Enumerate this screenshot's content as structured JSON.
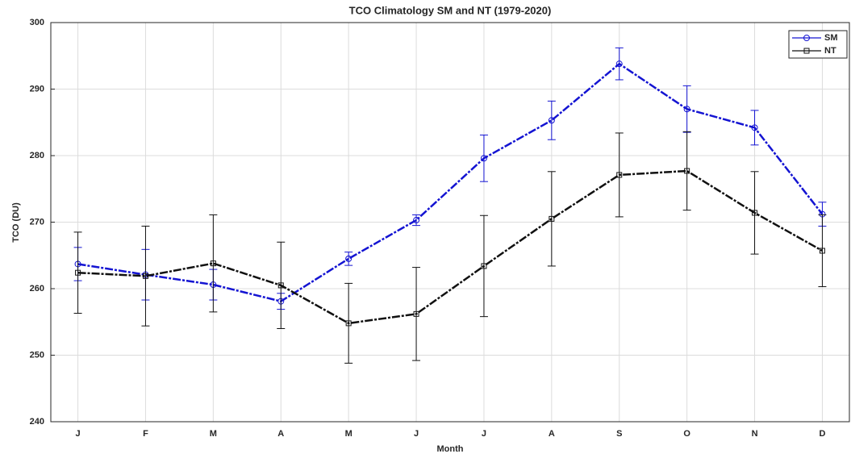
{
  "chart_data": {
    "type": "line",
    "title": "TCO Climatology SM and NT (1979-2020)",
    "x_label": "Month",
    "y_label": "TCO (DU)",
    "categories": [
      "J",
      "F",
      "M",
      "A",
      "M",
      "J",
      "J",
      "A",
      "S",
      "O",
      "N",
      "D"
    ],
    "series": [
      {
        "name": "SM",
        "color": "#1414d2",
        "marker": "circle",
        "values": [
          263.7,
          262.1,
          260.6,
          258.1,
          264.5,
          270.3,
          279.6,
          285.3,
          293.8,
          287.0,
          284.2,
          271.2
        ],
        "errors": [
          2.5,
          3.8,
          2.3,
          1.2,
          1.0,
          0.8,
          3.5,
          2.9,
          2.4,
          3.5,
          2.6,
          1.8
        ]
      },
      {
        "name": "NT",
        "color": "#111111",
        "marker": "square",
        "values": [
          262.4,
          261.9,
          263.8,
          260.5,
          254.8,
          256.2,
          263.4,
          270.5,
          277.1,
          277.7,
          271.4,
          265.7
        ],
        "errors": [
          6.1,
          7.5,
          7.3,
          6.5,
          6.0,
          7.0,
          7.6,
          7.1,
          6.3,
          5.9,
          6.2,
          5.4
        ]
      }
    ],
    "ylim": [
      240,
      300
    ],
    "yticks": [
      240,
      250,
      260,
      270,
      280,
      290,
      300
    ],
    "grid": true,
    "legend": "northeast"
  }
}
